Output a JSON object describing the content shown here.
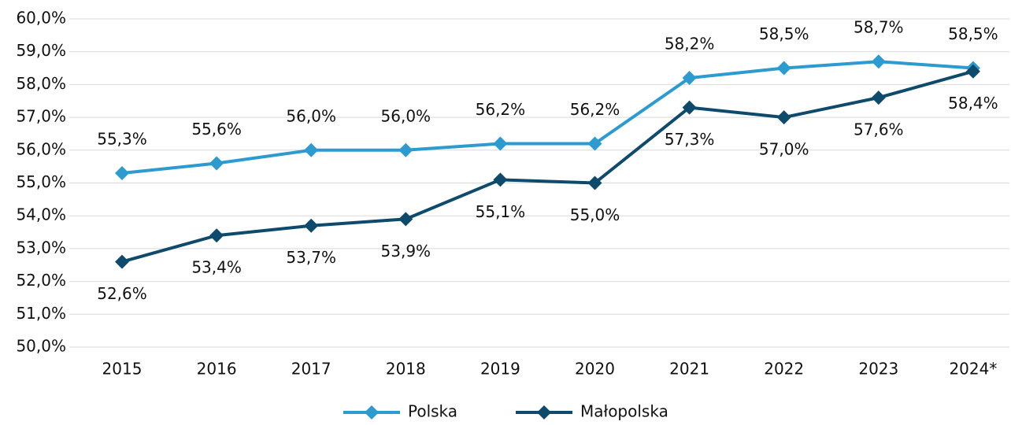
{
  "chart_data": {
    "type": "line",
    "categories": [
      "2015",
      "2016",
      "2017",
      "2018",
      "2019",
      "2020",
      "2021",
      "2022",
      "2023",
      "2024*"
    ],
    "series": [
      {
        "name": "Polska",
        "color": "#2b9bd0",
        "values": [
          55.3,
          55.6,
          56.0,
          56.0,
          56.2,
          56.2,
          58.2,
          58.5,
          58.7,
          58.5
        ],
        "value_labels": [
          "55,3%",
          "55,6%",
          "56,0%",
          "56,0%",
          "56,2%",
          "56,2%",
          "58,2%",
          "58,5%",
          "58,7%",
          "58,5%"
        ]
      },
      {
        "name": "Małopolska",
        "color": "#0e4a6b",
        "values": [
          52.6,
          53.4,
          53.7,
          53.9,
          55.1,
          55.0,
          57.3,
          57.0,
          57.6,
          58.4
        ],
        "value_labels": [
          "52,6%",
          "53,4%",
          "53,7%",
          "53,9%",
          "55,1%",
          "55,0%",
          "57,3%",
          "57,0%",
          "57,6%",
          "58,4%"
        ]
      }
    ],
    "ylim": [
      50,
      60
    ],
    "yticks": [
      {
        "value": 50,
        "label": "50,0%"
      },
      {
        "value": 51,
        "label": "51,0%"
      },
      {
        "value": 52,
        "label": "52,0%"
      },
      {
        "value": 53,
        "label": "53,0%"
      },
      {
        "value": 54,
        "label": "54,0%"
      },
      {
        "value": 55,
        "label": "55,0%"
      },
      {
        "value": 56,
        "label": "56,0%"
      },
      {
        "value": 57,
        "label": "57,0%"
      },
      {
        "value": 58,
        "label": "58,0%"
      },
      {
        "value": 59,
        "label": "59,0%"
      },
      {
        "value": 60,
        "label": "60,0%"
      }
    ],
    "grid": true,
    "legend": "bottom"
  }
}
